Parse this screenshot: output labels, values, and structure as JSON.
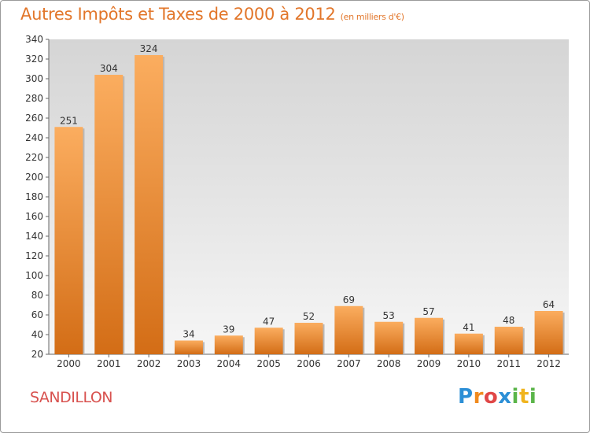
{
  "header": {
    "title": "Autres Impôts et Taxes de 2000 à 2012",
    "unit": "(en milliers d'€)"
  },
  "footer": {
    "commune": "SANDILLON",
    "brand": "Proxiti"
  },
  "colors": {
    "title": "#e2762a",
    "bar_light": "#fbad5f",
    "bar_dark": "#d36d16",
    "commune": "#d8524f"
  },
  "chart_data": {
    "type": "bar",
    "categories": [
      "2000",
      "2001",
      "2002",
      "2003",
      "2004",
      "2005",
      "2006",
      "2007",
      "2008",
      "2009",
      "2010",
      "2011",
      "2012"
    ],
    "values": [
      251,
      304,
      324,
      34,
      39,
      47,
      52,
      69,
      53,
      57,
      41,
      48,
      64
    ],
    "title": "Autres Impôts et Taxes de 2000 à 2012",
    "subtitle": "(en milliers d'€)",
    "xlabel": "",
    "ylabel": "",
    "ylim": [
      20,
      340
    ],
    "yticks": [
      20,
      40,
      60,
      80,
      100,
      120,
      140,
      160,
      180,
      200,
      220,
      240,
      260,
      280,
      300,
      320,
      340
    ],
    "grid": false,
    "data_labels": true
  }
}
